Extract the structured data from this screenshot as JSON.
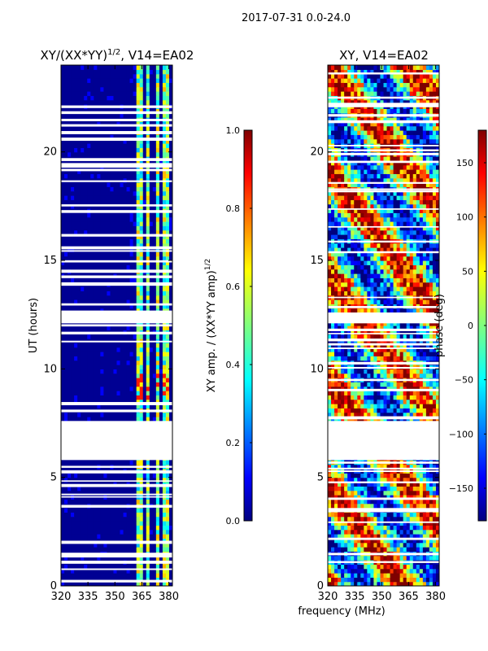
{
  "figure": {
    "suptitle": "2017-07-31 0.0-24.0",
    "shared_xlabel": "frequency (MHz)"
  },
  "colors": {
    "jet": [
      "#00007f",
      "#0000ff",
      "#007fff",
      "#00ffff",
      "#7fff7f",
      "#ffff00",
      "#ff7f00",
      "#ff0000",
      "#7f0000"
    ],
    "gap": "#ffffff",
    "axis": "#000000"
  },
  "chart_data": [
    {
      "type": "heatmap",
      "title_main": "XY/(XX*YY)",
      "title_sup": "1/2",
      "title_tail": ", V14=EA02",
      "xlabel": "",
      "ylabel": "UT (hours)",
      "xlim": [
        320,
        382
      ],
      "ylim": [
        0,
        24
      ],
      "xticks": [
        320,
        335,
        350,
        365,
        380
      ],
      "yticks": [
        0,
        5,
        10,
        15,
        20
      ],
      "quantity": "normalized XY amplitude",
      "no_data_intervals_hours": [
        [
          5.8,
          7.6
        ],
        [
          12.1,
          12.6
        ]
      ],
      "high_amplitude_band_MHz": [
        [
          362,
          366
        ],
        [
          367,
          370
        ],
        [
          372,
          374
        ],
        [
          377,
          380
        ]
      ],
      "colorbar": {
        "label_main": "XY amp. / (XX*YY amp)",
        "label_sup": "1/2",
        "range": [
          0.0,
          1.0
        ],
        "ticks": [
          "0.0",
          "0.2",
          "0.4",
          "0.6",
          "0.8",
          "1.0"
        ]
      }
    },
    {
      "type": "heatmap",
      "title_main": "XY, V14=EA02",
      "xlabel": "frequency (MHz)",
      "ylabel": "",
      "xlim": [
        320,
        382
      ],
      "ylim": [
        0,
        24
      ],
      "xticks": [
        320,
        335,
        350,
        365,
        380
      ],
      "yticks": [
        0,
        5,
        10,
        15,
        20
      ],
      "quantity": "XY phase",
      "no_data_intervals_hours": [
        [
          5.8,
          7.6
        ],
        [
          12.1,
          12.6
        ]
      ],
      "colorbar": {
        "label_main": "phase (deg)",
        "range": [
          -180,
          180
        ],
        "ticks": [
          "−150",
          "−100",
          "−50",
          "0",
          "50",
          "100",
          "150"
        ],
        "tick_values": [
          -150,
          -100,
          -50,
          0,
          50,
          100,
          150
        ]
      }
    }
  ]
}
